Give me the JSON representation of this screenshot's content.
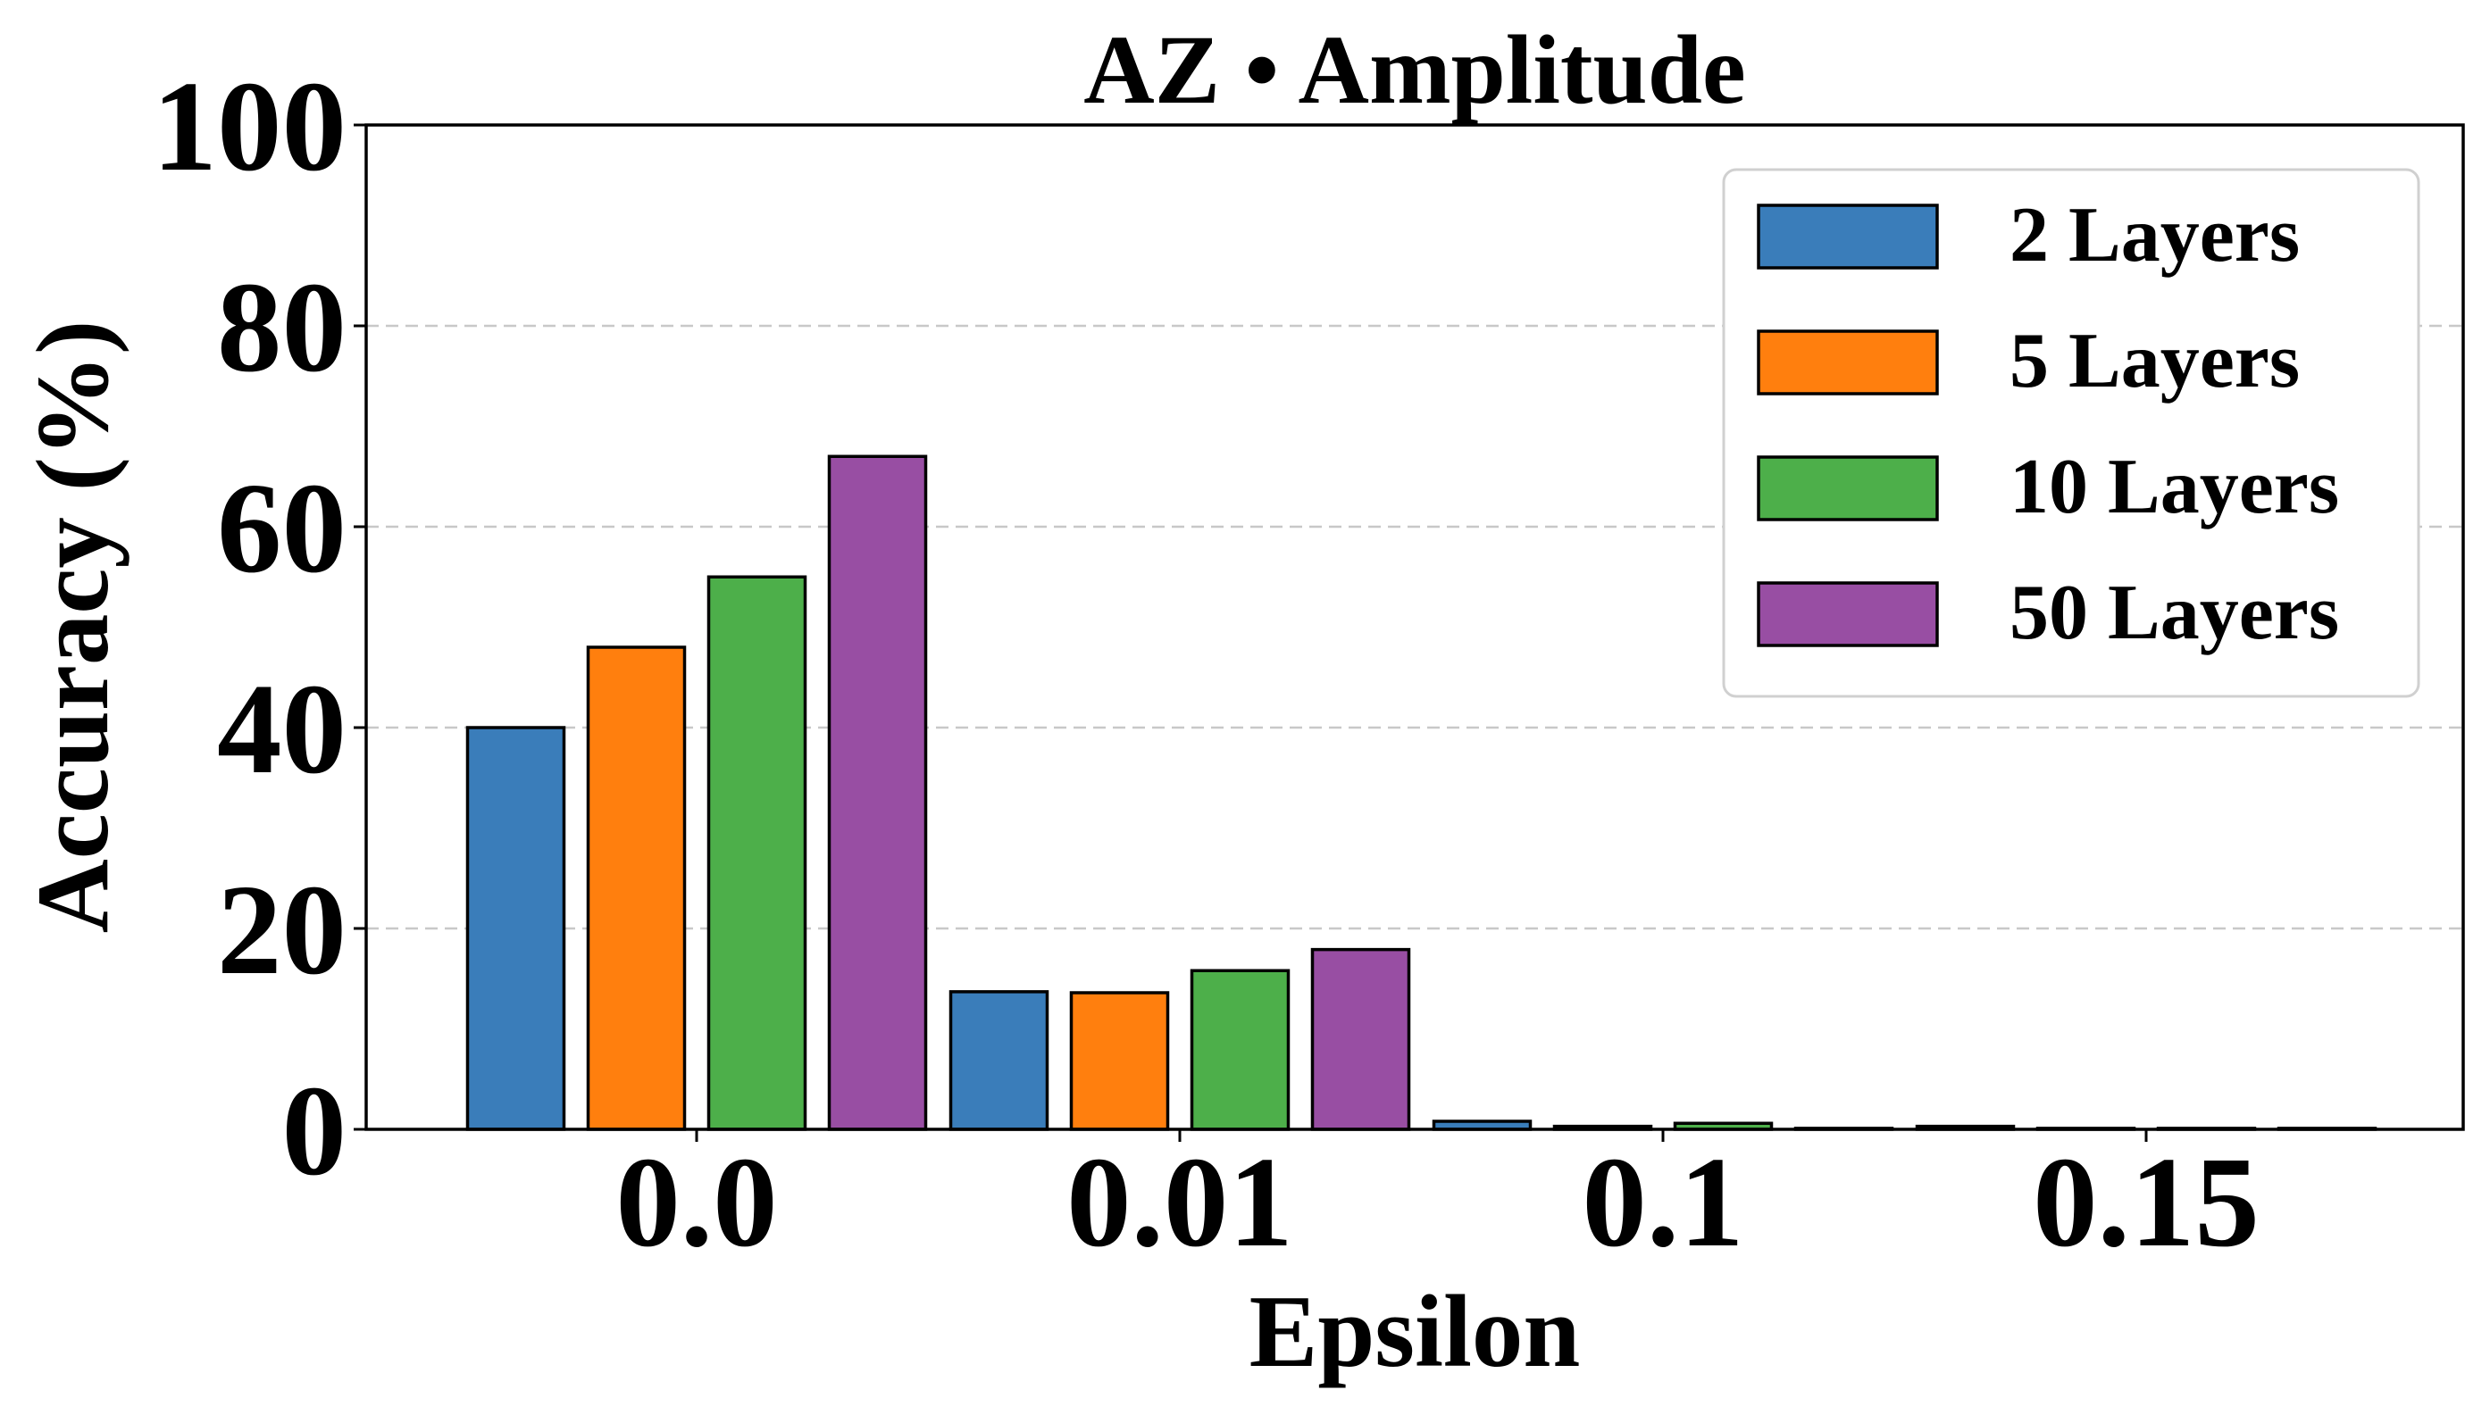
{
  "chart_data": {
    "type": "bar",
    "title": "AZ • Amplitude",
    "xlabel": "Epsilon",
    "ylabel": "Accuracy (%)",
    "categories": [
      "0.0",
      "0.01",
      "0.1",
      "0.15"
    ],
    "ylim": [
      0,
      100
    ],
    "yticks": [
      "0",
      "20",
      "40",
      "60",
      "80",
      "100"
    ],
    "grid": "horizontal dashed",
    "legend_position": "top-right",
    "series": [
      {
        "name": "2 Layers",
        "color": "#3a7dba",
        "values": [
          40.0,
          13.7,
          0.8,
          0.3
        ]
      },
      {
        "name": "5 Layers",
        "color": "#ff7f0e",
        "values": [
          48.0,
          13.6,
          0.3,
          0.1
        ]
      },
      {
        "name": "10 Layers",
        "color": "#4daf4a",
        "values": [
          55.0,
          15.8,
          0.6,
          0.1
        ]
      },
      {
        "name": "50 Layers",
        "color": "#984ea3",
        "values": [
          67.0,
          17.9,
          0.1,
          0.1
        ]
      }
    ]
  }
}
